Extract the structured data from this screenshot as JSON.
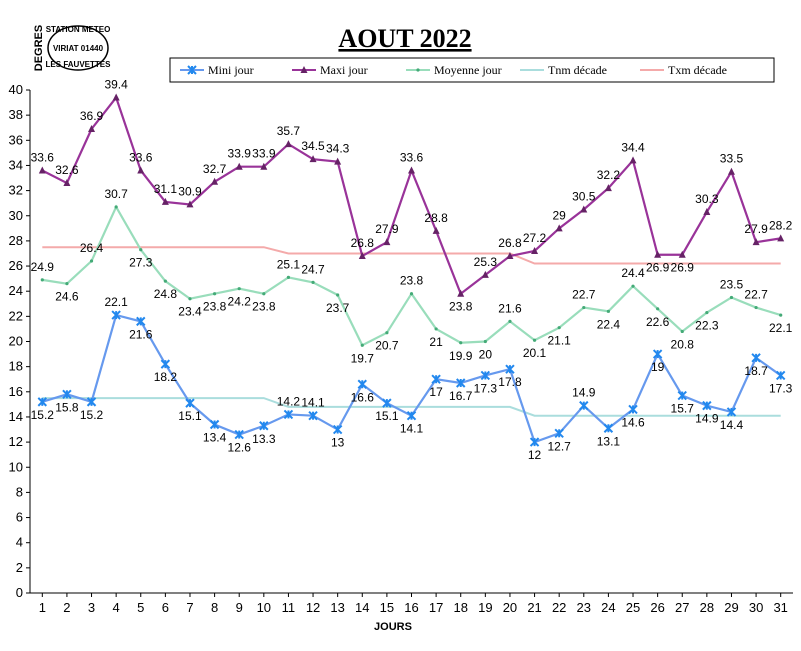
{
  "chart_data": {
    "type": "line",
    "title": "AOUT 2022",
    "xlabel": "JOURS",
    "ylabel": "DEGRES",
    "x": [
      1,
      2,
      3,
      4,
      5,
      6,
      7,
      8,
      9,
      10,
      11,
      12,
      13,
      14,
      15,
      16,
      17,
      18,
      19,
      20,
      21,
      22,
      23,
      24,
      25,
      26,
      27,
      28,
      29,
      30,
      31
    ],
    "ylim": [
      0,
      40
    ],
    "yticks": [
      0,
      2,
      4,
      6,
      8,
      10,
      12,
      14,
      16,
      18,
      20,
      22,
      24,
      26,
      28,
      30,
      32,
      34,
      36,
      38,
      40
    ],
    "grid": false,
    "legend_position": "top",
    "series": [
      {
        "name": "Mini jour",
        "color": "#6699ee",
        "marker": "star",
        "labels": true,
        "values": [
          15.2,
          15.8,
          15.2,
          22.1,
          21.6,
          18.2,
          15.1,
          13.4,
          12.6,
          13.3,
          14.2,
          14.1,
          13,
          16.6,
          15.1,
          14.1,
          17,
          16.7,
          17.3,
          17.8,
          12,
          12.7,
          14.9,
          13.1,
          14.6,
          19,
          15.7,
          14.9,
          14.4,
          18.7,
          17.3
        ]
      },
      {
        "name": "Maxi jour",
        "color": "#993399",
        "marker": "triangle",
        "labels": true,
        "values": [
          33.6,
          32.6,
          36.9,
          39.4,
          33.6,
          31.1,
          30.9,
          32.7,
          33.9,
          33.9,
          35.7,
          34.5,
          34.3,
          26.8,
          27.9,
          33.6,
          28.8,
          23.8,
          25.3,
          26.8,
          27.2,
          29,
          30.5,
          32.2,
          34.4,
          26.9,
          26.9,
          30.3,
          33.5,
          27.9,
          28.2
        ]
      },
      {
        "name": "Moyenne jour",
        "color": "#99ddbb",
        "marker": "dot",
        "labels": true,
        "values": [
          24.9,
          24.6,
          26.4,
          30.7,
          27.3,
          24.8,
          23.4,
          23.8,
          24.2,
          23.8,
          25.1,
          24.7,
          23.7,
          19.7,
          20.7,
          23.8,
          21,
          19.9,
          20,
          21.6,
          20.1,
          21.1,
          22.7,
          22.4,
          24.4,
          22.6,
          20.8,
          22.3,
          23.5,
          22.7,
          22.1
        ]
      },
      {
        "name": "Tnm décade",
        "color": "#aadddd",
        "marker": "none",
        "labels": false,
        "values": [
          15.5,
          15.5,
          15.5,
          15.5,
          15.5,
          15.5,
          15.5,
          15.5,
          15.5,
          15.5,
          14.8,
          14.8,
          14.8,
          14.8,
          14.8,
          14.8,
          14.8,
          14.8,
          14.8,
          14.8,
          14.1,
          14.1,
          14.1,
          14.1,
          14.1,
          14.1,
          14.1,
          14.1,
          14.1,
          14.1,
          14.1
        ]
      },
      {
        "name": "Txm décade",
        "color": "#f4aaaa",
        "marker": "none",
        "labels": false,
        "values": [
          27.5,
          27.5,
          27.5,
          27.5,
          27.5,
          27.5,
          27.5,
          27.5,
          27.5,
          27.5,
          27.0,
          27.0,
          27.0,
          27.0,
          27.0,
          27.0,
          27.0,
          27.0,
          27.0,
          27.0,
          26.2,
          26.2,
          26.2,
          26.2,
          26.2,
          26.2,
          26.2,
          26.2,
          26.2,
          26.2,
          26.2
        ]
      }
    ]
  },
  "stamp": {
    "line1": "STATION METEO",
    "line2": "VIRIAT 01440",
    "line3": "LES FAUVETTES"
  }
}
